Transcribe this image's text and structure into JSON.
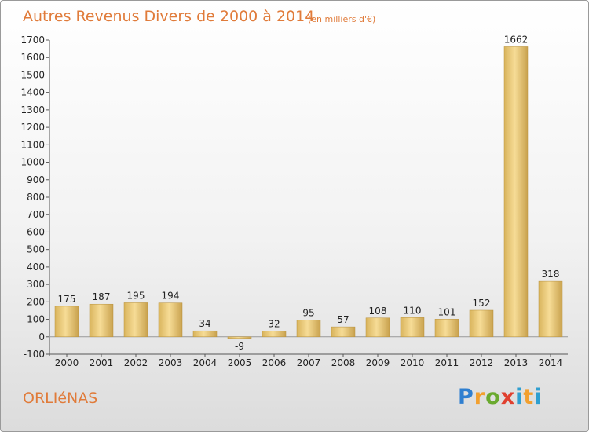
{
  "title": "Autres Revenus Divers de 2000 à 2014",
  "unit_note": "(en milliers d'€)",
  "city": "ORLIéNAS",
  "logo": {
    "p": "P",
    "r": "r",
    "o": "o",
    "x": "x",
    "i": "i",
    "t": "t",
    "i2": "i"
  },
  "colors": {
    "bar": "#e8c878",
    "bar_dark": "#c9a24e",
    "title": "#e07b3a"
  },
  "chart_data": {
    "type": "bar",
    "title": "Autres Revenus Divers de 2000 à 2014",
    "xlabel": "",
    "ylabel": "",
    "categories": [
      "2000",
      "2001",
      "2002",
      "2003",
      "2004",
      "2005",
      "2006",
      "2007",
      "2008",
      "2009",
      "2010",
      "2011",
      "2012",
      "2013",
      "2014"
    ],
    "values": [
      175,
      187,
      195,
      194,
      34,
      -9,
      32,
      95,
      57,
      108,
      110,
      101,
      152,
      1662,
      318
    ],
    "ylim": [
      -100,
      1700
    ],
    "yticks": [
      -100,
      0,
      100,
      200,
      300,
      400,
      500,
      600,
      700,
      800,
      900,
      1000,
      1100,
      1200,
      1300,
      1400,
      1500,
      1600,
      1700
    ],
    "grid": false,
    "legend": "none"
  }
}
